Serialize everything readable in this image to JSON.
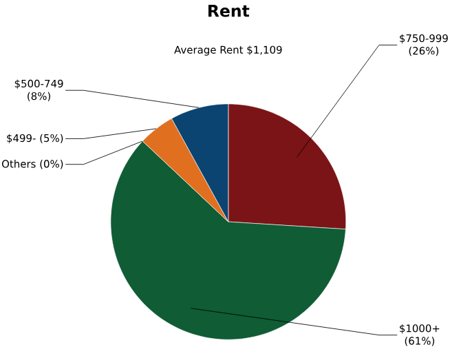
{
  "chart_data": {
    "type": "pie",
    "title": "Rent",
    "subtitle": "Average Rent  $1,109",
    "categories": [
      "$750-999",
      "$1000+",
      "Others",
      "$499-",
      "$500-749"
    ],
    "values": [
      26,
      61,
      0,
      5,
      8
    ],
    "colors": [
      "#7b1416",
      "#0f5c35",
      "#8c8c8c",
      "#e07020",
      "#0b4470"
    ],
    "value_labels": [
      "(26%)",
      "(61%)",
      "(0%)",
      "(5%)",
      "(8%)"
    ]
  }
}
